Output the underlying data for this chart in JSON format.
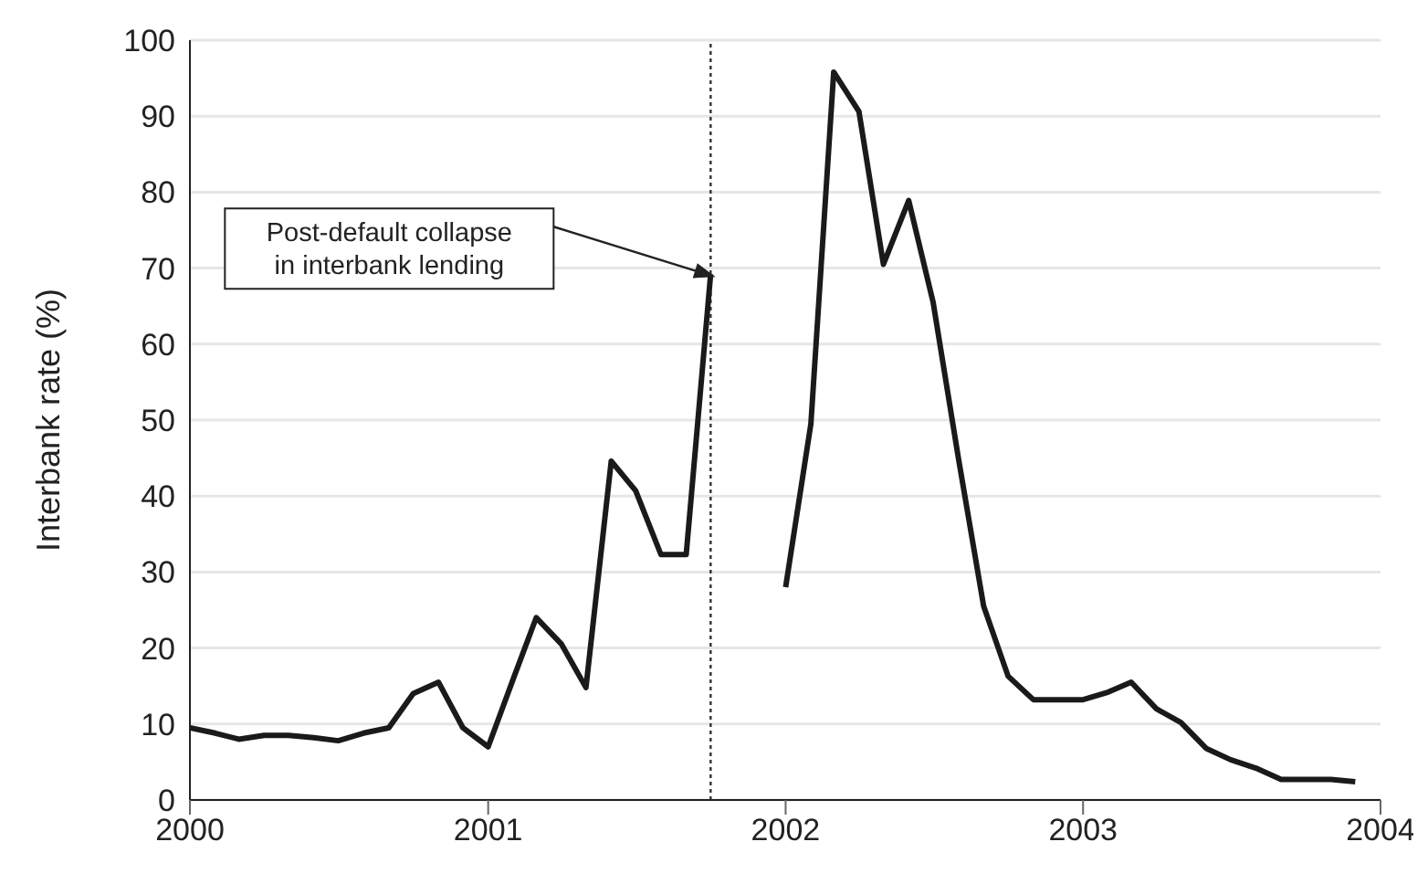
{
  "chart_data": {
    "type": "line",
    "ylabel": "Interbank rate (%)",
    "x": [
      "2000-01",
      "2000-02",
      "2000-03",
      "2000-04",
      "2000-05",
      "2000-06",
      "2000-07",
      "2000-08",
      "2000-09",
      "2000-10",
      "2000-11",
      "2000-12",
      "2001-01",
      "2001-02",
      "2001-03",
      "2001-04",
      "2001-05",
      "2001-06",
      "2001-07",
      "2001-08",
      "2001-09",
      "2001-10",
      "2001-11",
      "2001-12",
      "2002-01",
      "2002-02",
      "2002-03",
      "2002-04",
      "2002-05",
      "2002-06",
      "2002-07",
      "2002-08",
      "2002-09",
      "2002-10",
      "2002-11",
      "2002-12",
      "2003-01",
      "2003-02",
      "2003-03",
      "2003-04",
      "2003-05",
      "2003-06",
      "2003-07",
      "2003-08",
      "2003-09",
      "2003-10",
      "2003-11",
      "2003-12"
    ],
    "series": [
      {
        "color": "#1a1a1a",
        "values": [
          9.5,
          8.8,
          8,
          8.5,
          8.5,
          8.2,
          7.8,
          8.8,
          9.5,
          14,
          15.5,
          9.5,
          7,
          16,
          24,
          20.5,
          14.8,
          44.6,
          40.7,
          32.3,
          32.3,
          69.2,
          null,
          null,
          28,
          49.5,
          95.8,
          90.6,
          70.5,
          78.9,
          65.5,
          45,
          25.5,
          16.3,
          13.2,
          13.2,
          13.2,
          14.2,
          15.5,
          12,
          10.2,
          6.8,
          5.3,
          4.2,
          2.7,
          2.7,
          2.7,
          2.4
        ]
      }
    ],
    "xlim": [
      "2000-01",
      "2004-01"
    ],
    "xticks": [
      "2000",
      "2001",
      "2002",
      "2003",
      "2004"
    ],
    "ylim": [
      0,
      100
    ],
    "yticks": [
      0,
      10,
      20,
      30,
      40,
      50,
      60,
      70,
      80,
      90,
      100
    ],
    "grid": "y",
    "legend": false,
    "marker": "none",
    "line_style": "solid",
    "ref_lines": [
      {
        "axis": "x",
        "value": "2001-10",
        "line_style": "dotted",
        "color": "#333333"
      }
    ],
    "annotations": [
      "Post-default collapse\nin interbank lending"
    ]
  }
}
